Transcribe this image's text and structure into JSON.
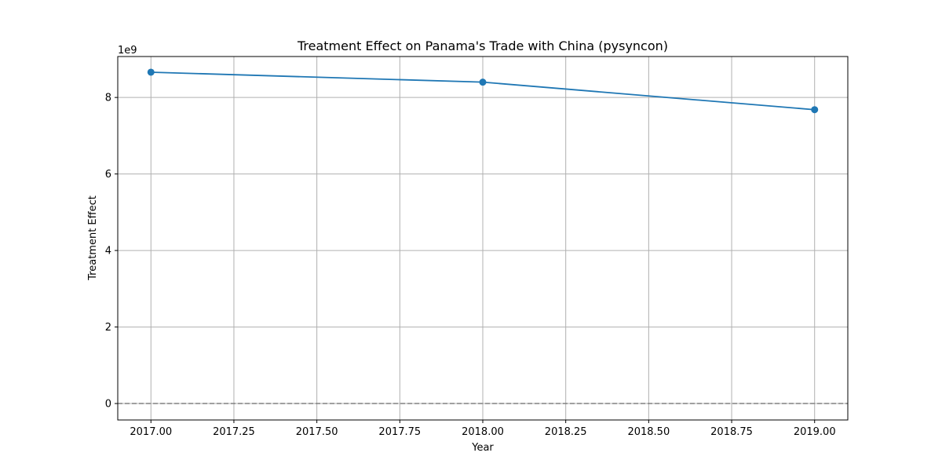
{
  "chart_data": {
    "type": "line",
    "title": "Treatment Effect on Panama's Trade with China (pysyncon)",
    "xlabel": "Year",
    "ylabel": "Treatment Effect",
    "y_offset_label": "1e9",
    "xlim": [
      2016.9,
      2019.1
    ],
    "ylim": [
      -0.43,
      9.07
    ],
    "y_scale": 1000000000,
    "xticks": [
      2017.0,
      2017.25,
      2017.5,
      2017.75,
      2018.0,
      2018.25,
      2018.5,
      2018.75,
      2019.0
    ],
    "xtick_labels": [
      "2017.00",
      "2017.25",
      "2017.50",
      "2017.75",
      "2018.00",
      "2018.25",
      "2018.50",
      "2018.75",
      "2019.00"
    ],
    "yticks": [
      0,
      2,
      4,
      6,
      8
    ],
    "ytick_labels": [
      "0",
      "2",
      "4",
      "6",
      "8"
    ],
    "grid": true,
    "reference_line": {
      "y": 0,
      "style": "dashed",
      "color": "#808080"
    },
    "series": [
      {
        "color": "#1f77b4",
        "marker": "circle",
        "points": [
          {
            "x": 2017,
            "y": 8.66
          },
          {
            "x": 2018,
            "y": 8.4
          },
          {
            "x": 2019,
            "y": 7.68
          }
        ]
      }
    ]
  }
}
